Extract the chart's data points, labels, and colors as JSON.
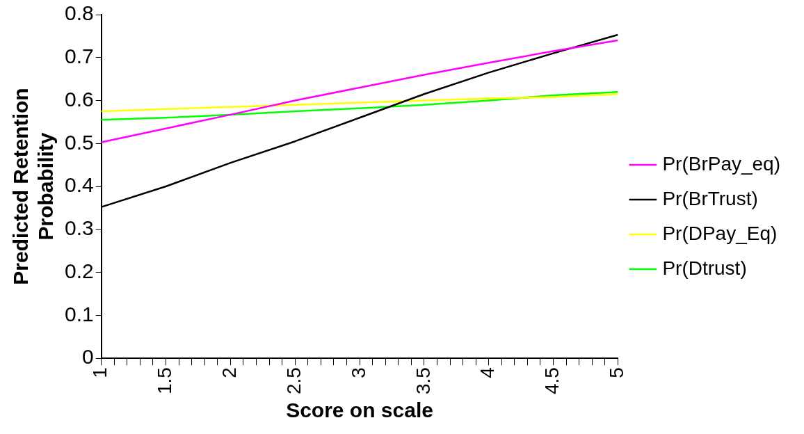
{
  "chart_data": {
    "type": "line",
    "xlabel": "Score on scale",
    "ylabel": "Predicted Retention Probability",
    "x": [
      1,
      1.5,
      2,
      2.5,
      3,
      3.5,
      4,
      4.5,
      5
    ],
    "series": [
      {
        "name": "Pr(BrPay_eq)",
        "color": "#ff00ff",
        "values": [
          0.503,
          0.535,
          0.567,
          0.6,
          0.63,
          0.66,
          0.688,
          0.715,
          0.74
        ]
      },
      {
        "name": "Pr(BrTrust)",
        "color": "#000000",
        "values": [
          0.352,
          0.4,
          0.455,
          0.505,
          0.56,
          0.615,
          0.665,
          0.71,
          0.753
        ]
      },
      {
        "name": "Pr(DPay_Eq)",
        "color": "#ffff00",
        "values": [
          0.575,
          0.58,
          0.585,
          0.59,
          0.595,
          0.6,
          0.605,
          0.608,
          0.615
        ]
      },
      {
        "name": "Pr(Dtrust)",
        "color": "#00ff00",
        "values": [
          0.555,
          0.56,
          0.567,
          0.575,
          0.582,
          0.59,
          0.6,
          0.612,
          0.62
        ]
      }
    ],
    "xlim": [
      1,
      5
    ],
    "xticks": [
      1,
      {
        "value": 1.1,
        "label": null
      },
      {
        "value": 1.2,
        "label": null
      },
      {
        "value": 1.3,
        "label": null
      },
      {
        "value": 1.4,
        "label": null
      },
      1.5,
      {
        "value": 1.6,
        "label": null
      },
      {
        "value": 1.7,
        "label": null
      },
      {
        "value": 1.8,
        "label": null
      },
      {
        "value": 1.9,
        "label": null
      },
      2,
      {
        "value": 2.1,
        "label": null
      },
      {
        "value": 2.2,
        "label": null
      },
      {
        "value": 2.3,
        "label": null
      },
      {
        "value": 2.4,
        "label": null
      },
      2.5,
      {
        "value": 2.6,
        "label": null
      },
      {
        "value": 2.7,
        "label": null
      },
      {
        "value": 2.8,
        "label": null
      },
      {
        "value": 2.9,
        "label": null
      },
      3,
      {
        "value": 3.1,
        "label": null
      },
      {
        "value": 3.2,
        "label": null
      },
      {
        "value": 3.3,
        "label": null
      },
      {
        "value": 3.4,
        "label": null
      },
      3.5,
      {
        "value": 3.6,
        "label": null
      },
      {
        "value": 3.7,
        "label": null
      },
      {
        "value": 3.8,
        "label": null
      },
      {
        "value": 3.9,
        "label": null
      },
      4,
      {
        "value": 4.1,
        "label": null
      },
      {
        "value": 4.2,
        "label": null
      },
      {
        "value": 4.3,
        "label": null
      },
      {
        "value": 4.4,
        "label": null
      },
      4.5,
      {
        "value": 4.6,
        "label": null
      },
      {
        "value": 4.7,
        "label": null
      },
      {
        "value": 4.8,
        "label": null
      },
      {
        "value": 4.9,
        "label": null
      },
      5
    ],
    "ylim": [
      0,
      0.8
    ],
    "yticks": [
      0,
      0.1,
      0.2,
      0.3,
      0.4,
      0.5,
      0.6,
      0.7,
      0.8
    ],
    "grid": false,
    "legend": "right",
    "marker": "none",
    "line_style": "solid"
  }
}
